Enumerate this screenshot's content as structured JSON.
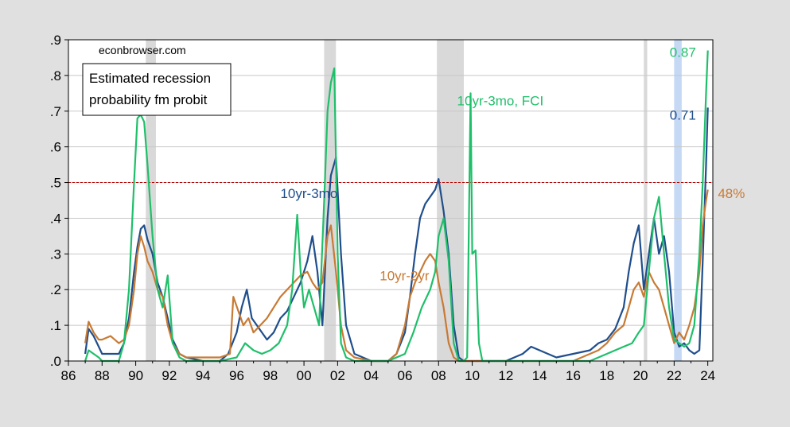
{
  "chart_data": {
    "type": "line",
    "watermark": "econbrowser.com",
    "title_box": [
      "Estimated recession",
      "probability fm probit"
    ],
    "x_ticks": [
      "86",
      "88",
      "90",
      "92",
      "94",
      "96",
      "98",
      "00",
      "02",
      "04",
      "06",
      "08",
      "10",
      "12",
      "14",
      "16",
      "18",
      "20",
      "22",
      "24"
    ],
    "x_tick_values": [
      1986,
      1988,
      1990,
      1992,
      1994,
      1996,
      1998,
      2000,
      2002,
      2004,
      2006,
      2008,
      2010,
      2012,
      2014,
      2016,
      2018,
      2020,
      2022,
      2024
    ],
    "y_ticks": [
      ".0",
      ".1",
      ".2",
      ".3",
      ".4",
      ".5",
      ".6",
      ".7",
      ".8",
      ".9"
    ],
    "y_tick_values": [
      0,
      0.1,
      0.2,
      0.3,
      0.4,
      0.5,
      0.6,
      0.7,
      0.8,
      0.9
    ],
    "xlim": [
      1986.0,
      2024.3
    ],
    "ylim": [
      0,
      0.9
    ],
    "grid": true,
    "threshold": 0.5,
    "recessions": [
      [
        1990.6,
        1991.2
      ],
      [
        2001.2,
        2001.9
      ],
      [
        2007.9,
        2009.5
      ],
      [
        2020.2,
        2020.4
      ]
    ],
    "projection_shade": [
      2022.0,
      2022.45
    ],
    "colors": {
      "plot_bg": "#ffffff",
      "page_bg": "#e0e0e0",
      "grid": "#c8c8c8",
      "recession": "#d9d9d9",
      "projection": "#c5d9f5",
      "threshold": "#c00000"
    },
    "series": [
      {
        "name": "10yr-3mo",
        "color": "#1f4e8c",
        "x": [
          1987.0,
          1987.2,
          1987.5,
          1987.8,
          1988.0,
          1988.5,
          1989.0,
          1989.3,
          1989.6,
          1989.9,
          1990.1,
          1990.3,
          1990.5,
          1990.7,
          1991.0,
          1991.3,
          1991.6,
          1991.9,
          1992.2,
          1992.6,
          1993.0,
          1994.0,
          1995.0,
          1995.5,
          1996.0,
          1996.3,
          1996.6,
          1996.9,
          1997.2,
          1997.5,
          1997.8,
          1998.2,
          1998.6,
          1999.0,
          1999.4,
          1999.8,
          2000.2,
          2000.5,
          2000.8,
          2001.1,
          2001.4,
          2001.6,
          2001.9,
          2002.2,
          2002.5,
          2003.0,
          2004.0,
          2005.0,
          2005.5,
          2006.0,
          2006.3,
          2006.6,
          2006.9,
          2007.2,
          2007.5,
          2007.8,
          2008.0,
          2008.3,
          2008.6,
          2008.9,
          2009.2,
          2009.5,
          2010.0,
          2011.0,
          2012.0,
          2013.0,
          2013.5,
          2014.0,
          2014.5,
          2015.0,
          2016.0,
          2017.0,
          2017.5,
          2018.0,
          2018.5,
          2019.0,
          2019.3,
          2019.6,
          2019.9,
          2020.2,
          2020.5,
          2020.8,
          2021.1,
          2021.4,
          2021.7,
          2022.0,
          2022.3,
          2022.6,
          2022.9,
          2023.2,
          2023.5,
          2023.7,
          2023.9,
          2024.0
        ],
        "y": [
          0.02,
          0.09,
          0.07,
          0.04,
          0.02,
          0.02,
          0.02,
          0.05,
          0.12,
          0.25,
          0.32,
          0.37,
          0.38,
          0.34,
          0.3,
          0.22,
          0.18,
          0.12,
          0.06,
          0.02,
          0.01,
          0.0,
          0.0,
          0.02,
          0.08,
          0.15,
          0.2,
          0.12,
          0.1,
          0.08,
          0.06,
          0.08,
          0.12,
          0.14,
          0.18,
          0.22,
          0.28,
          0.35,
          0.25,
          0.1,
          0.4,
          0.52,
          0.57,
          0.3,
          0.1,
          0.02,
          0.0,
          0.0,
          0.02,
          0.08,
          0.18,
          0.3,
          0.4,
          0.44,
          0.46,
          0.48,
          0.51,
          0.42,
          0.3,
          0.1,
          0.01,
          0.0,
          0.0,
          0.0,
          0.0,
          0.02,
          0.04,
          0.03,
          0.02,
          0.01,
          0.02,
          0.03,
          0.05,
          0.06,
          0.09,
          0.15,
          0.25,
          0.33,
          0.38,
          0.2,
          0.3,
          0.4,
          0.3,
          0.35,
          0.25,
          0.08,
          0.04,
          0.05,
          0.03,
          0.02,
          0.03,
          0.28,
          0.55,
          0.71
        ]
      },
      {
        "name": "10yr-2yr",
        "color": "#c87a34",
        "x": [
          1987.0,
          1987.2,
          1987.5,
          1987.8,
          1988.0,
          1988.5,
          1989.0,
          1989.3,
          1989.6,
          1989.9,
          1990.1,
          1990.3,
          1990.5,
          1990.7,
          1991.0,
          1991.3,
          1991.6,
          1991.9,
          1992.2,
          1992.6,
          1993.0,
          1994.0,
          1995.0,
          1995.6,
          1995.8,
          1996.1,
          1996.4,
          1996.7,
          1997.0,
          1997.4,
          1997.8,
          1998.2,
          1998.6,
          1999.0,
          1999.4,
          1999.8,
          2000.2,
          2000.5,
          2000.8,
          2001.1,
          2001.4,
          2001.6,
          2001.9,
          2002.2,
          2002.5,
          2003.0,
          2004.0,
          2005.0,
          2005.5,
          2006.0,
          2006.3,
          2006.6,
          2006.9,
          2007.2,
          2007.5,
          2007.8,
          2008.0,
          2008.3,
          2008.6,
          2008.9,
          2009.2,
          2009.5,
          2010.0,
          2011.0,
          2012.0,
          2013.0,
          2014.0,
          2015.0,
          2016.0,
          2016.5,
          2017.0,
          2017.5,
          2018.0,
          2018.5,
          2019.0,
          2019.3,
          2019.6,
          2019.9,
          2020.2,
          2020.5,
          2020.8,
          2021.1,
          2021.4,
          2021.7,
          2022.0,
          2022.3,
          2022.6,
          2022.9,
          2023.2,
          2023.5,
          2023.7,
          2023.9,
          2024.0
        ],
        "y": [
          0.05,
          0.11,
          0.08,
          0.06,
          0.06,
          0.07,
          0.05,
          0.06,
          0.1,
          0.2,
          0.3,
          0.35,
          0.32,
          0.28,
          0.25,
          0.2,
          0.18,
          0.1,
          0.05,
          0.02,
          0.01,
          0.01,
          0.01,
          0.02,
          0.18,
          0.14,
          0.1,
          0.12,
          0.08,
          0.1,
          0.12,
          0.15,
          0.18,
          0.2,
          0.22,
          0.24,
          0.25,
          0.22,
          0.2,
          0.22,
          0.35,
          0.38,
          0.25,
          0.1,
          0.03,
          0.01,
          0.0,
          0.0,
          0.02,
          0.1,
          0.18,
          0.22,
          0.25,
          0.28,
          0.3,
          0.28,
          0.22,
          0.15,
          0.05,
          0.01,
          0.0,
          0.0,
          0.0,
          0.0,
          0.0,
          0.0,
          0.0,
          0.0,
          0.0,
          0.01,
          0.02,
          0.03,
          0.05,
          0.08,
          0.1,
          0.15,
          0.2,
          0.22,
          0.18,
          0.25,
          0.22,
          0.2,
          0.15,
          0.1,
          0.05,
          0.08,
          0.06,
          0.1,
          0.15,
          0.25,
          0.38,
          0.45,
          0.48
        ]
      },
      {
        "name": "10yr-3mo, FCI",
        "color": "#1fbf6a",
        "x": [
          1987.0,
          1987.2,
          1987.5,
          1987.8,
          1988.0,
          1988.5,
          1989.0,
          1989.3,
          1989.6,
          1989.9,
          1990.1,
          1990.3,
          1990.5,
          1990.7,
          1991.0,
          1991.3,
          1991.6,
          1991.9,
          1992.2,
          1992.6,
          1993.0,
          1994.0,
          1995.0,
          1996.0,
          1996.5,
          1997.0,
          1997.5,
          1998.0,
          1998.5,
          1999.0,
          1999.3,
          1999.6,
          1999.8,
          2000.0,
          2000.3,
          2000.6,
          2000.9,
          2001.2,
          2001.4,
          2001.6,
          2001.8,
          2002.0,
          2002.2,
          2002.5,
          2003.0,
          2004.0,
          2005.0,
          2006.0,
          2006.5,
          2007.0,
          2007.5,
          2007.8,
          2008.0,
          2008.3,
          2008.6,
          2008.9,
          2009.2,
          2009.5,
          2009.7,
          2009.9,
          2010.0,
          2010.2,
          2010.4,
          2010.6,
          2011.0,
          2012.0,
          2013.0,
          2014.0,
          2015.0,
          2016.0,
          2017.0,
          2018.0,
          2018.5,
          2019.0,
          2019.5,
          2019.9,
          2020.2,
          2020.5,
          2020.8,
          2021.1,
          2021.4,
          2021.7,
          2022.0,
          2022.3,
          2022.6,
          2022.9,
          2023.2,
          2023.5,
          2023.7,
          2023.9,
          2024.0
        ],
        "y": [
          0.0,
          0.03,
          0.02,
          0.01,
          0.0,
          0.0,
          0.0,
          0.05,
          0.2,
          0.5,
          0.68,
          0.69,
          0.67,
          0.55,
          0.35,
          0.2,
          0.15,
          0.24,
          0.05,
          0.01,
          0.0,
          0.0,
          0.0,
          0.01,
          0.05,
          0.03,
          0.02,
          0.03,
          0.05,
          0.1,
          0.2,
          0.41,
          0.25,
          0.15,
          0.2,
          0.15,
          0.1,
          0.45,
          0.7,
          0.78,
          0.82,
          0.3,
          0.05,
          0.01,
          0.0,
          0.0,
          0.0,
          0.02,
          0.08,
          0.15,
          0.2,
          0.25,
          0.35,
          0.4,
          0.28,
          0.05,
          0.0,
          0.0,
          0.01,
          0.75,
          0.3,
          0.31,
          0.05,
          0.0,
          0.0,
          0.0,
          0.0,
          0.0,
          0.0,
          0.0,
          0.0,
          0.02,
          0.03,
          0.04,
          0.05,
          0.08,
          0.1,
          0.25,
          0.4,
          0.46,
          0.3,
          0.15,
          0.06,
          0.05,
          0.04,
          0.05,
          0.1,
          0.3,
          0.5,
          0.75,
          0.87
        ]
      }
    ],
    "annotations": [
      {
        "text": "10yr-3mo",
        "x": 1998.6,
        "y": 0.47,
        "series": 0
      },
      {
        "text": "10yr-2yr",
        "x": 2004.5,
        "y": 0.24,
        "series": 1
      },
      {
        "text": "10yr-3mo, FCI",
        "x": 2009.1,
        "y": 0.73,
        "series": 2
      },
      {
        "text": "0.87",
        "x": 2023.3,
        "y": 0.865,
        "series": 2,
        "anchor": "end"
      },
      {
        "text": "0.71",
        "x": 2023.3,
        "y": 0.69,
        "series": 0,
        "anchor": "end"
      },
      {
        "text": "48%",
        "x": 2024.6,
        "y": 0.47,
        "series": 1,
        "anchor": "start"
      }
    ]
  }
}
